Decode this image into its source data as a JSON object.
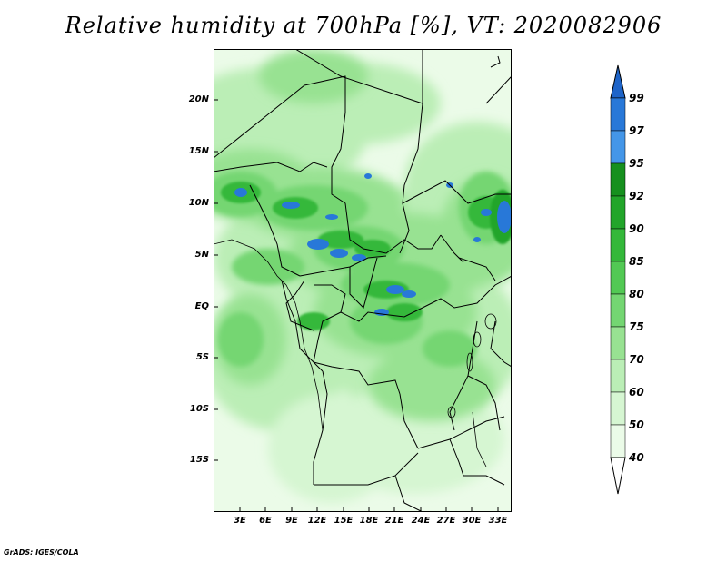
{
  "title": "Relative humidity at 700hPa [%], VT: 2020082906",
  "credit": "GrADS: IGES/COLA",
  "map": {
    "lat_labels": [
      "20N",
      "15N",
      "10N",
      "5N",
      "EQ",
      "5S",
      "10S",
      "15S"
    ],
    "lon_labels": [
      "3E",
      "6E",
      "9E",
      "12E",
      "15E",
      "18E",
      "21E",
      "24E",
      "27E",
      "30E",
      "33E"
    ]
  },
  "colorbar": {
    "labels": [
      "99",
      "97",
      "95",
      "92",
      "90",
      "85",
      "80",
      "75",
      "70",
      "60",
      "50",
      "40"
    ],
    "colors": [
      "#1e64c8",
      "#2878d8",
      "#4496e8",
      "#16901e",
      "#22a52a",
      "#34b83a",
      "#52c954",
      "#74d672",
      "#98e292",
      "#bbeeb6",
      "#d6f6d2",
      "#ebfbe8",
      "#ffffff"
    ],
    "color_min_note": "white below 40"
  }
}
